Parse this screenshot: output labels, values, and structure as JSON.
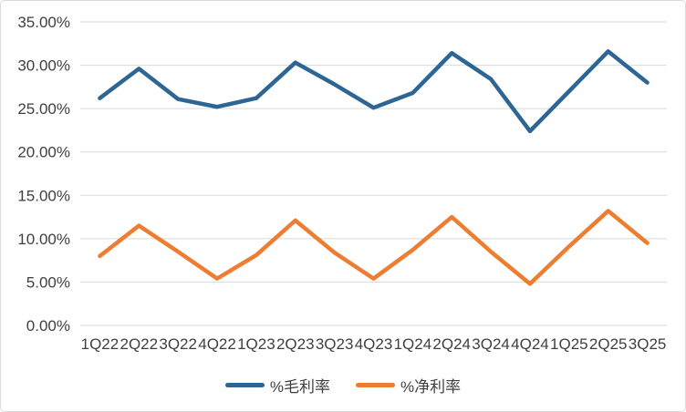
{
  "chart_data": {
    "type": "line",
    "title": "",
    "xlabel": "",
    "ylabel": "",
    "categories": [
      "1Q22",
      "2Q22",
      "3Q22",
      "4Q22",
      "1Q23",
      "2Q23",
      "3Q23",
      "4Q23",
      "1Q24",
      "2Q24",
      "3Q24",
      "4Q24",
      "1Q25",
      "2Q25",
      "3Q25"
    ],
    "series": [
      {
        "name": "%毛利率",
        "color": "#2d6595",
        "values": [
          26.2,
          29.6,
          26.1,
          25.2,
          26.2,
          30.3,
          27.8,
          25.1,
          26.8,
          31.4,
          28.4,
          22.4,
          27.0,
          31.6,
          28.0
        ]
      },
      {
        "name": "%净利率",
        "color": "#ed7d31",
        "values": [
          8.0,
          11.5,
          8.5,
          5.4,
          8.1,
          12.1,
          8.4,
          5.4,
          8.7,
          12.5,
          8.5,
          4.8,
          9.1,
          13.2,
          9.5
        ]
      }
    ],
    "ylim": [
      0,
      35
    ],
    "y_tick_values": [
      0,
      5,
      10,
      15,
      20,
      25,
      30,
      35
    ],
    "y_tick_labels": [
      "0.00%",
      "5.00%",
      "10.00%",
      "15.00%",
      "20.00%",
      "25.00%",
      "30.00%",
      "35.00%"
    ],
    "grid": true,
    "legend_position": "bottom"
  },
  "style": {
    "background": "#ffffff",
    "border_color": "#d9d9d9",
    "grid_color": "#d9d9d9",
    "axis_text_color": "#3f3f3f",
    "line_width": 4.5
  }
}
